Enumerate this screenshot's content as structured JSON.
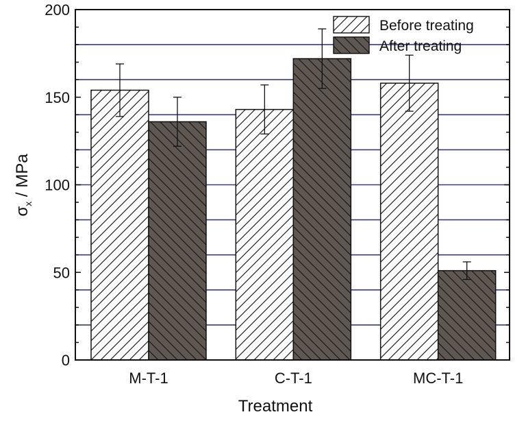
{
  "chart_data": {
    "type": "bar",
    "categories": [
      "M-T-1",
      "C-T-1",
      "MC-T-1"
    ],
    "series": [
      {
        "name": "Before treating",
        "values": [
          154,
          143,
          158
        ],
        "errors": [
          15,
          14,
          16
        ],
        "pattern": "hatch-forward"
      },
      {
        "name": "After treating",
        "values": [
          136,
          172,
          51
        ],
        "errors": [
          14,
          17,
          5
        ],
        "pattern": "hatch-back-dark"
      }
    ],
    "title": "",
    "xlabel": "Treatment",
    "ylabel_main": "σ",
    "ylabel_sub": "x",
    "ylabel_rest": " / MPa",
    "ylim": [
      0,
      200
    ],
    "yticks": [
      "0",
      "50",
      "100",
      "150",
      "200"
    ],
    "ytick_values": [
      0,
      50,
      100,
      150,
      200
    ],
    "gridlines": [
      20,
      40,
      60,
      80,
      100,
      120,
      140,
      160,
      180
    ],
    "grid": true,
    "legend_position": "top-right",
    "colors": {
      "grid": "#3a3a7a",
      "after_fill": "#5e5752",
      "before_fill": "#ffffff",
      "axis": "#111111"
    }
  }
}
